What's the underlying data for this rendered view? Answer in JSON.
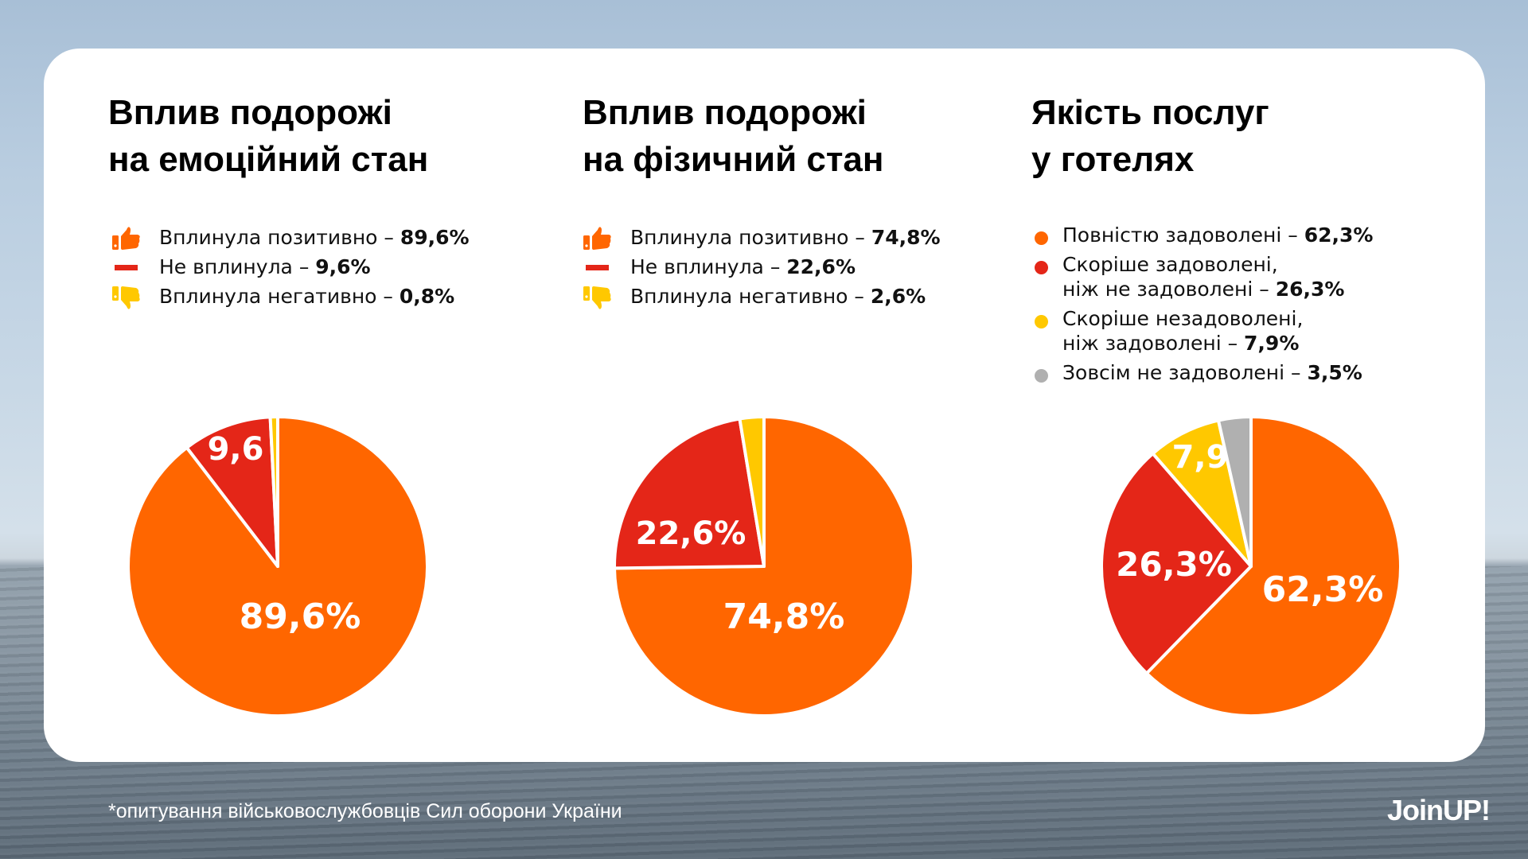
{
  "colors": {
    "orange": "#ff6600",
    "red": "#e42618",
    "yellow": "#ffc800",
    "gray": "#b0b0b0",
    "card": "#ffffff"
  },
  "footnote": "*опитування військовослужбовців Сил оборони України",
  "logo": "JoinUP!",
  "chart_data": [
    {
      "type": "pie",
      "title": [
        "Вплив подорожі",
        "на емоційний стан"
      ],
      "legend_position": "top",
      "legend": [
        {
          "icon": "thumbs-up-icon",
          "label": "Вплинула позитивно – ",
          "value_text": "89,6%"
        },
        {
          "icon": "dash-icon",
          "label": "Не вплинула – ",
          "value_text": "9,6%"
        },
        {
          "icon": "thumbs-down-icon",
          "label": "Вплинула негативно – ",
          "value_text": "0,8%"
        }
      ],
      "categories": [
        "Вплинула позитивно",
        "Не вплинула",
        "Вплинула негативно"
      ],
      "values": [
        89.6,
        9.6,
        0.8
      ],
      "colors": [
        "#ff6600",
        "#e42618",
        "#ffc800"
      ],
      "slice_labels": [
        "89,6%",
        "9,6",
        ""
      ]
    },
    {
      "type": "pie",
      "title": [
        "Вплив подорожі",
        "на фізичний стан"
      ],
      "legend_position": "top",
      "legend": [
        {
          "icon": "thumbs-up-icon",
          "label": "Вплинула позитивно – ",
          "value_text": "74,8%"
        },
        {
          "icon": "dash-icon",
          "label": "Не вплинула – ",
          "value_text": "22,6%"
        },
        {
          "icon": "thumbs-down-icon",
          "label": "Вплинула негативно – ",
          "value_text": "2,6%"
        }
      ],
      "categories": [
        "Вплинула позитивно",
        "Не вплинула",
        "Вплинула негативно"
      ],
      "values": [
        74.8,
        22.6,
        2.6
      ],
      "colors": [
        "#ff6600",
        "#e42618",
        "#ffc800"
      ],
      "slice_labels": [
        "74,8%",
        "22,6%",
        ""
      ]
    },
    {
      "type": "pie",
      "title": [
        "Якість послуг",
        "у готелях"
      ],
      "legend_position": "top",
      "legend": [
        {
          "icon": "dot-icon",
          "label": "Повністю задоволені – ",
          "value_text": "62,3%"
        },
        {
          "icon": "dot-icon",
          "label_line1": "Скоріше задоволені,",
          "label": "ніж не задоволені – ",
          "value_text": "26,3%"
        },
        {
          "icon": "dot-icon",
          "label_line1": "Скоріше незадоволені,",
          "label": "ніж задоволені – ",
          "value_text": "7,9%"
        },
        {
          "icon": "dot-icon",
          "label": "Зовсім не задоволені – ",
          "value_text": "3,5%"
        }
      ],
      "categories": [
        "Повністю задоволені",
        "Скоріше задоволені, ніж не задоволені",
        "Скоріше незадоволені, ніж задоволені",
        "Зовсім не задоволені"
      ],
      "values": [
        62.3,
        26.3,
        7.9,
        3.5
      ],
      "colors": [
        "#ff6600",
        "#e42618",
        "#ffc800",
        "#b0b0b0"
      ],
      "slice_labels": [
        "62,3%",
        "26,3%",
        "7,9",
        ""
      ]
    }
  ]
}
